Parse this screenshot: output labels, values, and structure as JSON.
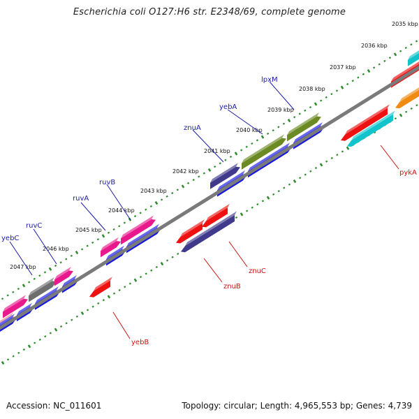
{
  "title": "Escherichia coli O127:H6 str. E2348/69, complete genome",
  "footer": {
    "accession": "Accession: NC_011601",
    "summary": "Topology: circular; Length: 4,965,553 bp; Genes: 4,739"
  },
  "colors": {
    "backbone": "#7a7a7a",
    "tick": "#2e8b2e",
    "label_forward": "#1a1aa8",
    "label_reverse": "#cc1111",
    "blue": "#1515e6",
    "red": "#ee1111",
    "pink": "#e8198c",
    "olive": "#6b8a23",
    "slate": "#3f3a8c",
    "gray": "#6e6e6e",
    "cyan": "#11c4cc",
    "orange": "#f08a10",
    "salmon": "#ee8080"
  },
  "scale": {
    "unit": "kbp",
    "labels": [
      "2035 kbp",
      "2036 kbp",
      "2037 kbp",
      "2038 kbp",
      "2039 kbp",
      "2040 kbp",
      "2041 kbp",
      "2042 kbp",
      "2043 kbp",
      "2044 kbp",
      "2045 kbp",
      "2046 kbp",
      "2047 kbp"
    ]
  },
  "genes": {
    "forward": [
      {
        "name": "lpxM",
        "color": "olive"
      },
      {
        "name": "yebA",
        "color": "olive"
      },
      {
        "name": "znuA",
        "color": "slate"
      },
      {
        "name": "ruvB",
        "color": "pink"
      },
      {
        "name": "ruvA",
        "color": "pink"
      },
      {
        "name": "ruvC",
        "color": "gray"
      },
      {
        "name": "yebC",
        "color": "pink"
      }
    ],
    "reverse": [
      {
        "name": "pykA",
        "color": "cyan"
      },
      {
        "name": "znuC",
        "color": "red"
      },
      {
        "name": "znuB",
        "color": "slate"
      },
      {
        "name": "yebB",
        "color": "red"
      }
    ]
  }
}
